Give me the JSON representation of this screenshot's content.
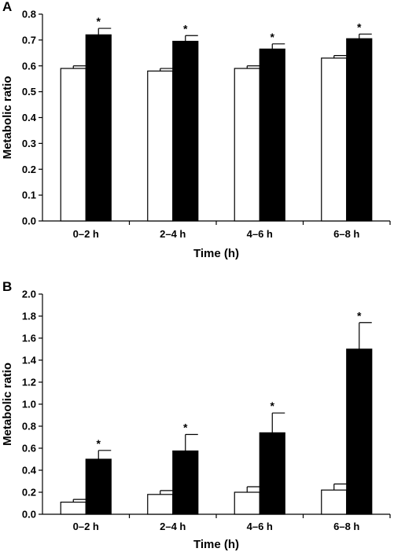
{
  "chart_data": [
    {
      "type": "bar",
      "panel": "A",
      "categories": [
        "0–2 h",
        "2–4 h",
        "4–6 h",
        "6–8 h"
      ],
      "series": [
        {
          "values": [
            0.59,
            0.58,
            0.59,
            0.63
          ],
          "errors": [
            0.01,
            0.01,
            0.01,
            0.01
          ],
          "color": "#ffffff"
        },
        {
          "values": [
            0.72,
            0.695,
            0.665,
            0.705
          ],
          "errors": [
            0.025,
            0.022,
            0.02,
            0.018
          ],
          "color": "#000000"
        }
      ],
      "annotations": [
        "*",
        "*",
        "*",
        "*"
      ],
      "xlabel": "Time (h)",
      "ylabel": "Metabolic ratio",
      "ylim": [
        0,
        0.8
      ],
      "yticks": [
        "0.0",
        "0.1",
        "0.2",
        "0.3",
        "0.4",
        "0.5",
        "0.6",
        "0.7",
        "0.8"
      ],
      "grid": false
    },
    {
      "type": "bar",
      "panel": "B",
      "categories": [
        "0–2 h",
        "2–4 h",
        "4–6 h",
        "6–8 h"
      ],
      "series": [
        {
          "values": [
            0.11,
            0.18,
            0.2,
            0.22
          ],
          "errors": [
            0.025,
            0.035,
            0.05,
            0.055
          ],
          "color": "#ffffff"
        },
        {
          "values": [
            0.5,
            0.575,
            0.74,
            1.5
          ],
          "errors": [
            0.08,
            0.15,
            0.18,
            0.24
          ],
          "color": "#000000"
        }
      ],
      "annotations": [
        "*",
        "*",
        "*",
        "*"
      ],
      "xlabel": "Time (h)",
      "ylabel": "Metabolic ratio",
      "ylim": [
        0,
        2.0
      ],
      "yticks": [
        "0.0",
        "0.2",
        "0.4",
        "0.6",
        "0.8",
        "1.0",
        "1.2",
        "1.4",
        "1.6",
        "1.8",
        "2.0"
      ],
      "grid": false
    }
  ]
}
